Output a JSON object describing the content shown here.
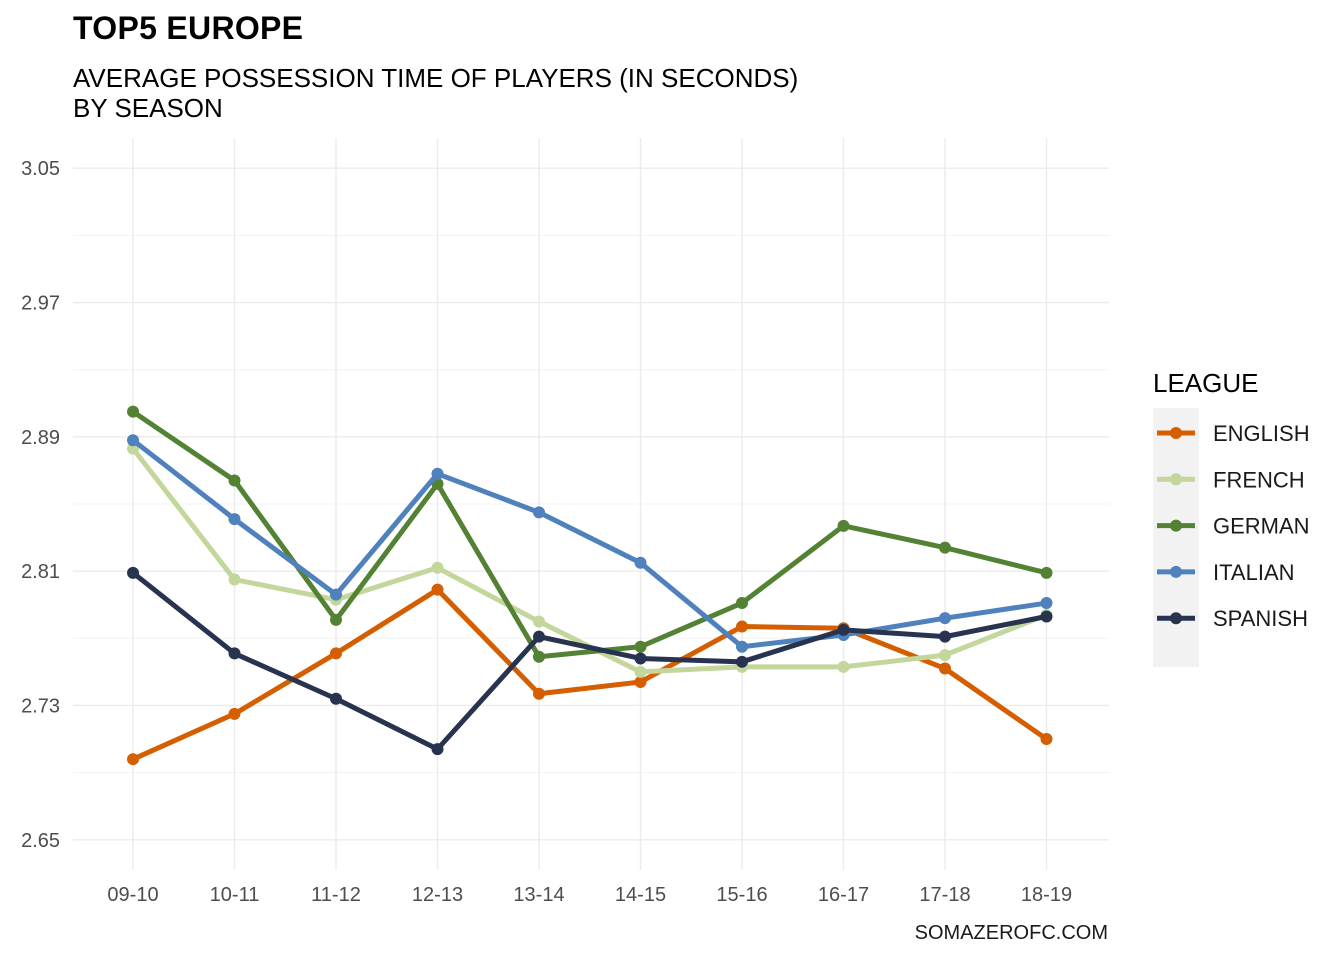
{
  "title": "TOP5 EUROPE",
  "subtitle_lines": [
    "AVERAGE POSSESSION TIME OF PLAYERS (IN SECONDS)",
    "BY SEASON"
  ],
  "caption": "SOMAZEROFC.COM",
  "chart_data": {
    "type": "line",
    "title": "TOP5 EUROPE",
    "subtitle": "AVERAGE POSSESSION TIME OF PLAYERS (IN SECONDS) BY SEASON",
    "xlabel": "",
    "ylabel": "",
    "categories": [
      "09-10",
      "10-11",
      "11-12",
      "12-13",
      "13-14",
      "14-15",
      "15-16",
      "16-17",
      "17-18",
      "18-19"
    ],
    "y_ticks": [
      "2.65",
      "2.73",
      "2.81",
      "2.89",
      "2.97",
      "3.05"
    ],
    "ylim": [
      2.632,
      3.068
    ],
    "grid": true,
    "legend_title": "LEAGUE",
    "legend_position": "right",
    "series": [
      {
        "name": "ENGLISH",
        "color": "#D55E00",
        "values": [
          2.698,
          2.725,
          2.761,
          2.799,
          2.737,
          2.744,
          2.777,
          2.776,
          2.752,
          2.71
        ]
      },
      {
        "name": "FRENCH",
        "color": "#C3D69B",
        "values": [
          2.883,
          2.805,
          2.793,
          2.812,
          2.78,
          2.75,
          2.753,
          2.753,
          2.76,
          2.784
        ]
      },
      {
        "name": "GERMAN",
        "color": "#548235",
        "values": [
          2.905,
          2.864,
          2.781,
          2.862,
          2.759,
          2.765,
          2.791,
          2.837,
          2.824,
          2.809
        ]
      },
      {
        "name": "ITALIAN",
        "color": "#4F81BD",
        "values": [
          2.888,
          2.841,
          2.796,
          2.868,
          2.845,
          2.815,
          2.765,
          2.772,
          2.782,
          2.791
        ]
      },
      {
        "name": "SPANISH",
        "color": "#283350",
        "values": [
          2.809,
          2.761,
          2.734,
          2.704,
          2.771,
          2.758,
          2.756,
          2.775,
          2.771,
          2.783
        ]
      }
    ]
  }
}
